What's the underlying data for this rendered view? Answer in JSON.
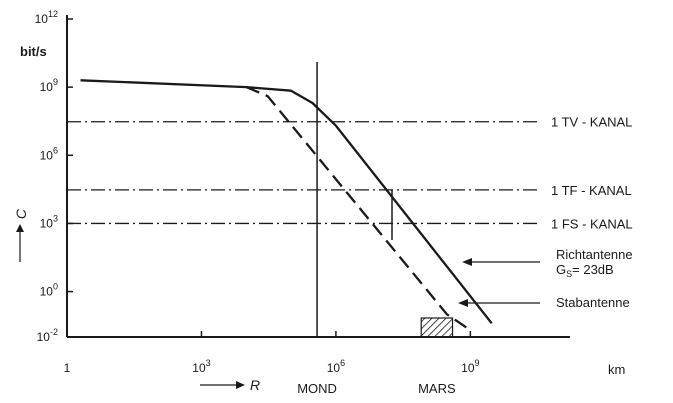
{
  "chart_data": {
    "type": "line",
    "xscale": "log",
    "yscale": "log",
    "xlim": [
      1,
      100000000000.0
    ],
    "ylim": [
      0.01,
      1000000000000.0
    ],
    "xticks": [
      {
        "value": 1,
        "base": "1",
        "exp": ""
      },
      {
        "value": 1000,
        "base": "10",
        "exp": "3"
      },
      {
        "value": 1000000,
        "base": "10",
        "exp": "6"
      },
      {
        "value": 1000000000,
        "base": "10",
        "exp": "9"
      }
    ],
    "yticks": [
      {
        "value": 0.01,
        "base": "10",
        "exp": "-2"
      },
      {
        "value": 1,
        "base": "10",
        "exp": "0"
      },
      {
        "value": 1000,
        "base": "10",
        "exp": "3"
      },
      {
        "value": 1000000,
        "base": "10",
        "exp": "6"
      },
      {
        "value": 1000000000,
        "base": "10",
        "exp": "9"
      },
      {
        "value": 1000000000000,
        "base": "10",
        "exp": "12"
      }
    ],
    "x_unit": "km",
    "x_axis_label": "R",
    "y_unit": "bit/s",
    "y_axis_label": "C",
    "series": [
      {
        "name": "Richtantenne",
        "sublabel_main": "G",
        "sublabel_sub": "S",
        "sublabel_rest": "= 23dB",
        "style": "solid",
        "x": [
          2,
          10000,
          100000,
          300000,
          1000000,
          3000000000
        ],
        "y": [
          2000000000,
          1000000000,
          700000000,
          200000000,
          20000000,
          0.04
        ]
      },
      {
        "name": "Stabantenne",
        "style": "dashed",
        "x": [
          10000,
          30000,
          300000000,
          1000000000
        ],
        "y": [
          1000000000,
          400000000,
          0.1,
          0.02
        ]
      }
    ],
    "channels": [
      {
        "label": "1 TV - KANAL",
        "value": 30000000
      },
      {
        "label": "1 TF - KANAL",
        "value": 30000
      },
      {
        "label": "1 FS - KANAL",
        "value": 1000
      }
    ],
    "markers": [
      {
        "label": "MOND",
        "x": 380000
      },
      {
        "label": "MARS",
        "x_range": [
          80000000,
          400000000
        ]
      }
    ]
  }
}
